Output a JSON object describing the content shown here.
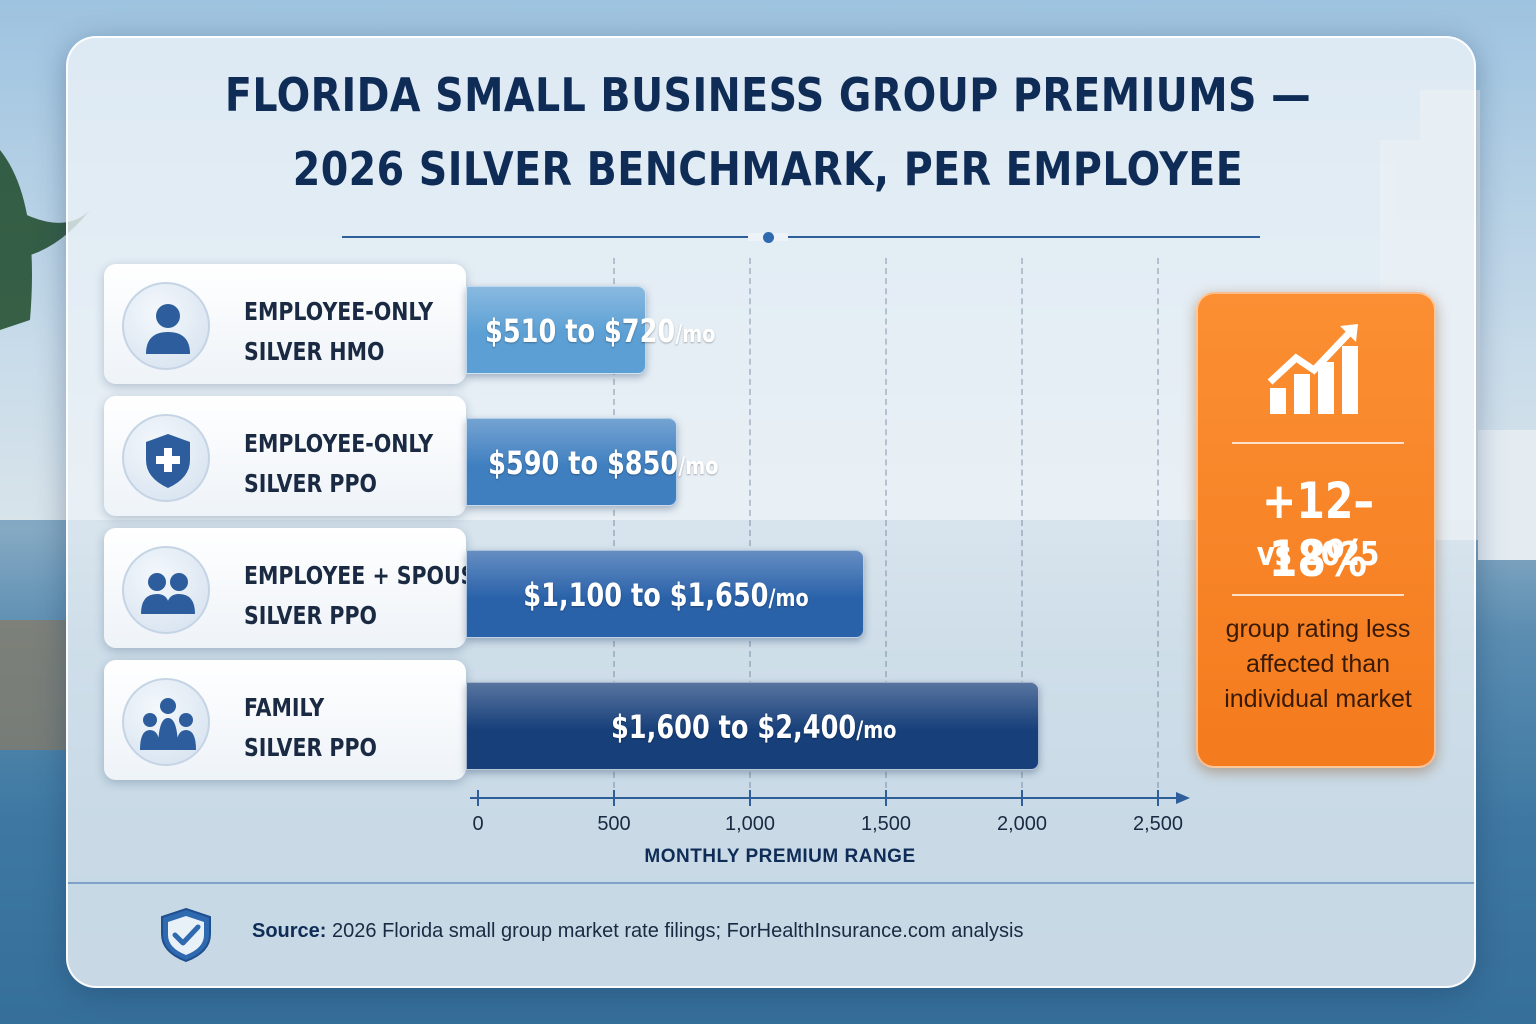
{
  "title": {
    "line1": "FLORIDA SMALL BUSINESS GROUP PREMIUMS —",
    "line2": "2026 SILVER BENCHMARK, PER EMPLOYEE"
  },
  "chart_data": {
    "type": "bar",
    "orientation": "horizontal-range",
    "categories": [
      {
        "line1": "EMPLOYEE-ONLY",
        "line2": "SILVER HMO",
        "icon": "person-icon"
      },
      {
        "line1": "EMPLOYEE-ONLY",
        "line2": "SILVER PPO",
        "icon": "shield-plus-icon"
      },
      {
        "line1": "EMPLOYEE + SPOUSE",
        "line2": "SILVER PPO",
        "icon": "two-people-icon"
      },
      {
        "line1": "FAMILY",
        "line2": "SILVER PPO",
        "icon": "family-icon"
      }
    ],
    "series": [
      {
        "min": 510,
        "max": 720,
        "range_text": "$510 to $720",
        "unit": "/mo",
        "color": "#5b9fd4"
      },
      {
        "min": 590,
        "max": 850,
        "range_text": "$590 to $850",
        "unit": "/mo",
        "color": "#3f7fc0"
      },
      {
        "min": 1100,
        "max": 1650,
        "range_text": "$1,100 to $1,650",
        "unit": "/mo",
        "color": "#2a62aa"
      },
      {
        "min": 1600,
        "max": 2400,
        "range_text": "$1,600 to $2,400",
        "unit": "/mo",
        "color": "#173f7a"
      }
    ],
    "xlim": [
      0,
      2500
    ],
    "xticks": [
      "0",
      "500",
      "1,000",
      "1,500",
      "2,000",
      "2,500"
    ],
    "xtick_values": [
      0,
      500,
      1000,
      1500,
      2000,
      2500
    ],
    "xlabel": "MONTHLY PREMIUM RANGE",
    "grid": true
  },
  "callout": {
    "value": "+12–18%",
    "comparison": "vs 2025",
    "note": "group rating less affected than individual market",
    "color": "#f7861f",
    "icon": "trending-up-chart-icon"
  },
  "source": {
    "label": "Source:",
    "text": "2026 Florida small group market rate filings; ForHealthInsurance.com analysis",
    "icon": "shield-check-icon"
  }
}
